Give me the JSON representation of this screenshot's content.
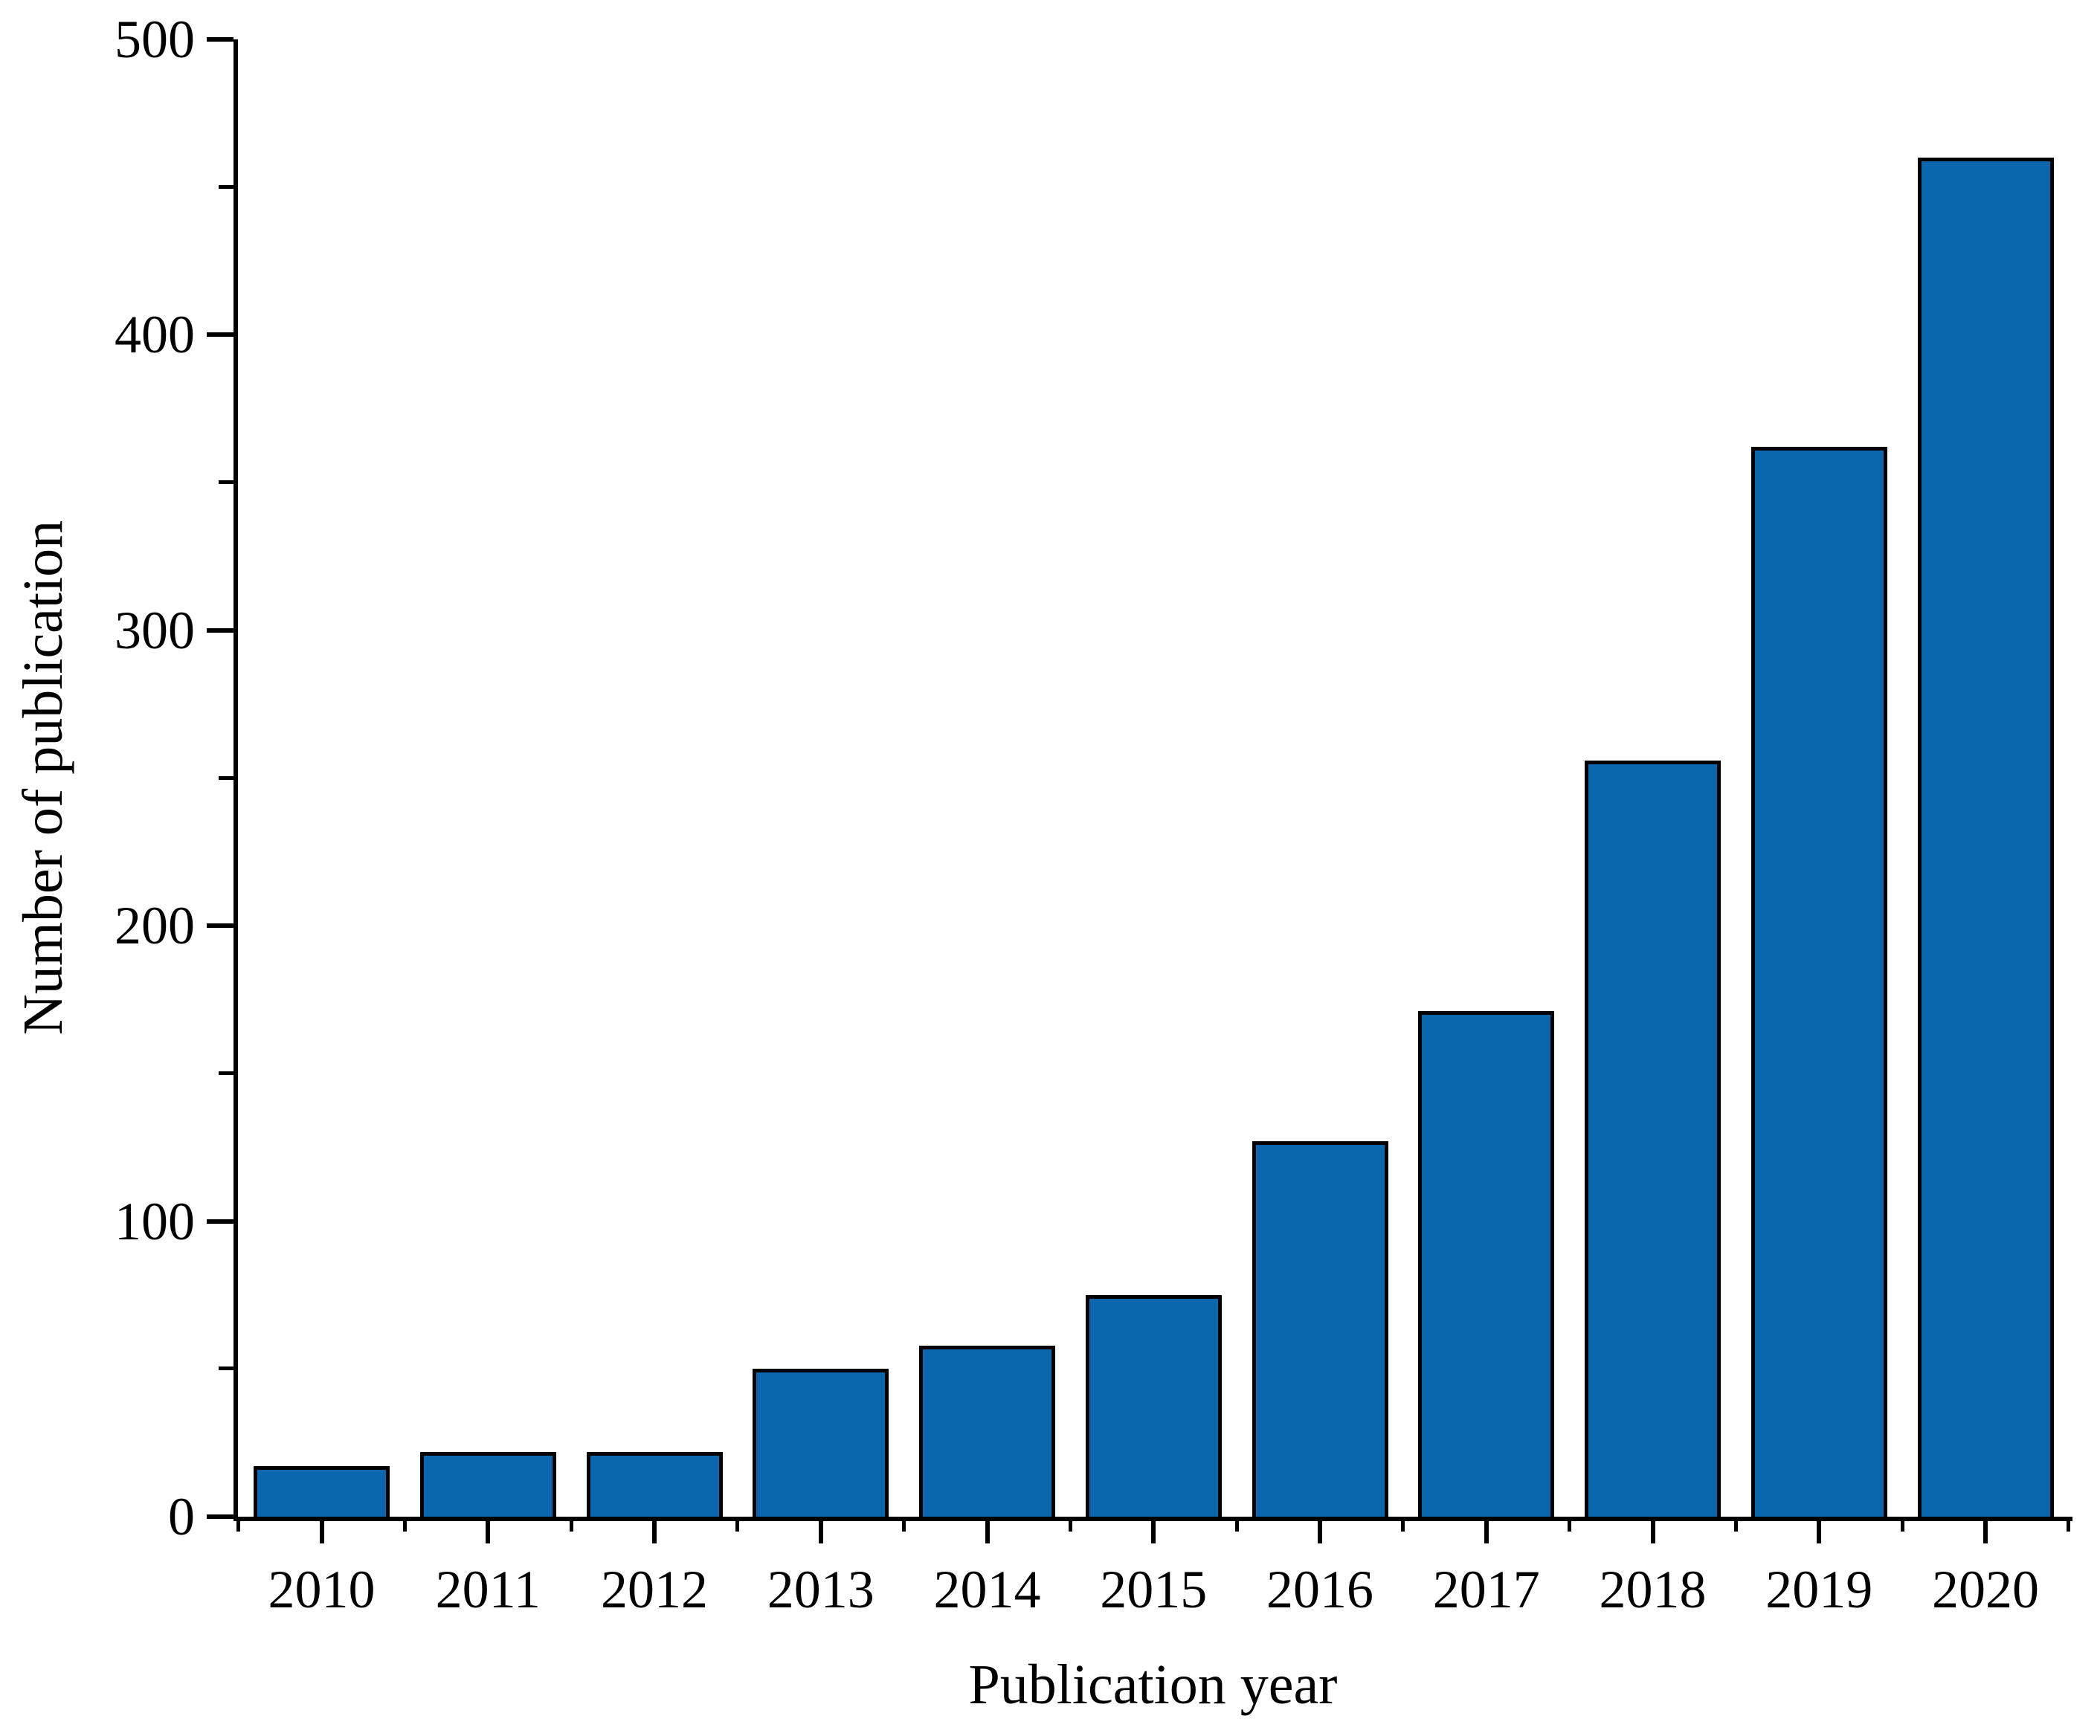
{
  "chart_data": {
    "type": "bar",
    "title": "",
    "categories": [
      "2010",
      "2011",
      "2012",
      "2013",
      "2014",
      "2015",
      "2016",
      "2017",
      "2018",
      "2019",
      "2020"
    ],
    "values": [
      17,
      22,
      22,
      50,
      58,
      75,
      127,
      171,
      256,
      362,
      460
    ],
    "xlabel": "Publication year",
    "ylabel": "Number of publication",
    "ylim": [
      0,
      500
    ],
    "yticks_major": [
      0,
      100,
      200,
      300,
      400,
      500
    ],
    "ytick_labels": [
      "0",
      "100",
      "200",
      "300",
      "400",
      "500"
    ],
    "ytick_minor_step": 50,
    "grid": false,
    "legend_position": "none",
    "bar_color": "#0a67ae",
    "bar_edge_color": "#000000",
    "axis_color": "#000000",
    "background_color": "#ffffff"
  }
}
